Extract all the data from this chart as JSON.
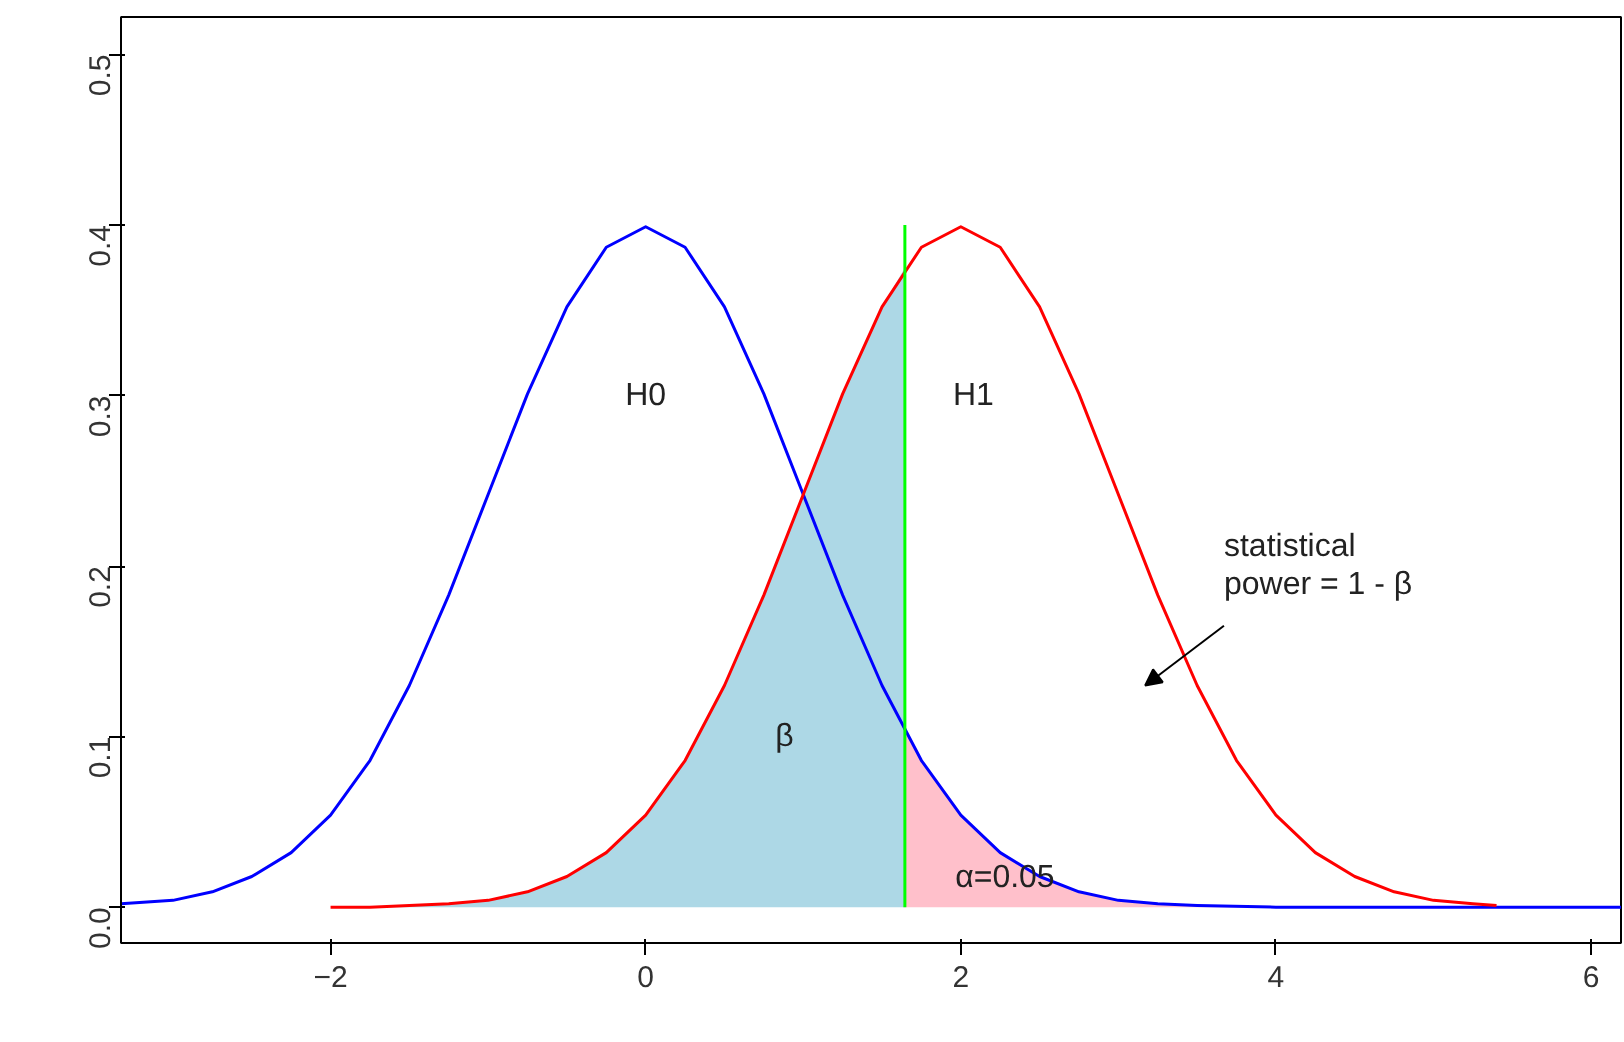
{
  "chart_data": {
    "type": "line",
    "xlim": [
      -3.33,
      6.19
    ],
    "ylim": [
      -0.021,
      0.522
    ],
    "xticks": [
      -2,
      0,
      2,
      4,
      6
    ],
    "yticks": [
      {
        "value": 0,
        "label": "0.0"
      },
      0.1,
      0.2,
      0.3,
      0.4,
      0.5
    ],
    "grid": false,
    "marker": "none",
    "line_style": "solid",
    "series": [
      {
        "type": "area",
        "color": "#add8e6",
        "x": [
          -2,
          -1.75,
          -1.5,
          -1.25,
          -1,
          -0.75,
          -0.5,
          -0.25,
          0,
          0.25,
          0.5,
          0.75,
          1,
          1.25,
          1.5,
          1.645
        ],
        "values": [
          0,
          0,
          0.001,
          0.002,
          0.004,
          0.009,
          0.018,
          0.032,
          0.054,
          0.086,
          0.13,
          0.183,
          0.242,
          0.301,
          0.352,
          0.375
        ]
      },
      {
        "type": "area",
        "color": "#ffc0cb",
        "x": [
          1.645,
          1.75,
          2,
          2.25,
          2.5,
          2.75,
          3,
          3.25,
          3.5,
          4,
          5,
          6.19
        ],
        "values": [
          0.103,
          0.086,
          0.054,
          0.032,
          0.018,
          0.009,
          0.004,
          0.002,
          0.001,
          0,
          0,
          0
        ]
      },
      {
        "color": "#0000ff",
        "x": [
          -3.33,
          -3,
          -2.75,
          -2.5,
          -2.25,
          -2,
          -1.75,
          -1.5,
          -1.25,
          -1,
          -0.75,
          -0.5,
          -0.25,
          0,
          0.25,
          0.5,
          0.75,
          1,
          1.25,
          1.5,
          1.75,
          2,
          2.25,
          2.5,
          2.75,
          3,
          3.25,
          3.5,
          4,
          5,
          6.19
        ],
        "values": [
          0.002,
          0.004,
          0.009,
          0.018,
          0.032,
          0.054,
          0.086,
          0.13,
          0.183,
          0.242,
          0.301,
          0.352,
          0.387,
          0.399,
          0.387,
          0.352,
          0.301,
          0.242,
          0.183,
          0.13,
          0.086,
          0.054,
          0.032,
          0.018,
          0.009,
          0.004,
          0.002,
          0.001,
          0,
          0,
          0
        ]
      },
      {
        "color": "#ff0000",
        "x": [
          -2,
          -1.75,
          -1.5,
          -1.25,
          -1,
          -0.75,
          -0.5,
          -0.25,
          0,
          0.25,
          0.5,
          0.75,
          1,
          1.25,
          1.5,
          1.75,
          2,
          2.25,
          2.5,
          2.75,
          3,
          3.25,
          3.5,
          3.75,
          4,
          4.25,
          4.5,
          4.75,
          5,
          5.25,
          5.4
        ],
        "values": [
          0,
          0,
          0.001,
          0.002,
          0.004,
          0.009,
          0.018,
          0.032,
          0.054,
          0.086,
          0.13,
          0.183,
          0.242,
          0.301,
          0.352,
          0.387,
          0.399,
          0.387,
          0.352,
          0.301,
          0.242,
          0.183,
          0.13,
          0.086,
          0.054,
          0.032,
          0.018,
          0.009,
          0.004,
          0.002,
          0.001
        ]
      },
      {
        "color": "#00ff00",
        "x": [
          1.645,
          1.645
        ],
        "values": [
          0,
          0.4
        ]
      }
    ],
    "annotations": [
      "H0",
      "H1",
      "β",
      "α=0.05",
      "statistical\npower = 1 - β"
    ]
  }
}
